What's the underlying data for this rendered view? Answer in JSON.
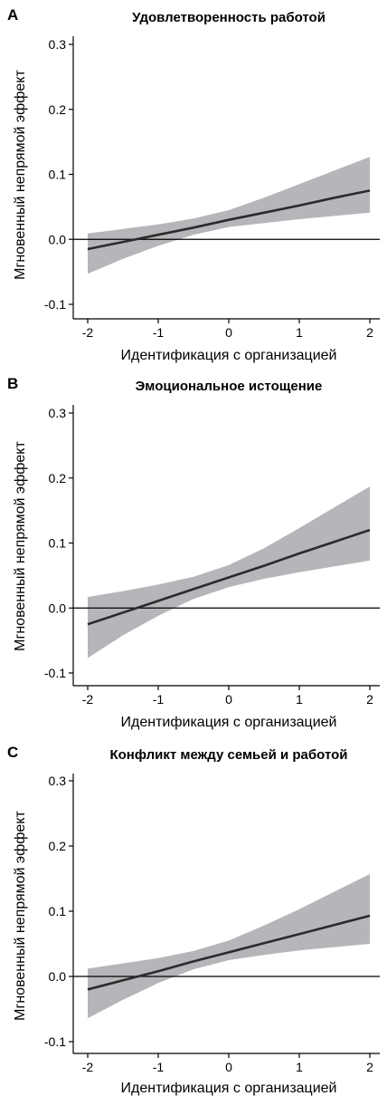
{
  "chart_data": [
    {
      "panel": "A",
      "type": "line",
      "title": "Удовлетворенность работой",
      "xlabel": "Идентификация с организацией",
      "ylabel": "Мгновенный непрямой эффект",
      "xlim": [
        -2,
        2
      ],
      "ylim": [
        -0.1,
        0.3
      ],
      "xticks": [
        "-2",
        "-1",
        "0",
        "1",
        "2"
      ],
      "yticks": [
        "-0.1",
        "0.0",
        "0.1",
        "0.2",
        "0.3"
      ],
      "reference_line_y": 0,
      "x": [
        -2,
        -1.5,
        -1,
        -0.5,
        0,
        0.5,
        1,
        1.5,
        2
      ],
      "estimate": [
        -0.015,
        -0.004,
        0.007,
        0.018,
        0.03,
        0.041,
        0.052,
        0.064,
        0.075
      ],
      "ci_upper": [
        0.009,
        0.016,
        0.023,
        0.032,
        0.045,
        0.064,
        0.085,
        0.106,
        0.127
      ],
      "ci_lower": [
        -0.053,
        -0.03,
        -0.01,
        0.007,
        0.019,
        0.025,
        0.031,
        0.036,
        0.041
      ],
      "line_color": "#2b2b2b",
      "band_color": "#b5b6b9"
    },
    {
      "panel": "B",
      "type": "line",
      "title": "Эмоциональное истощение",
      "xlabel": "Идентификация с организацией",
      "ylabel": "Мгновенный непрямой эффект",
      "xlim": [
        -2,
        2
      ],
      "ylim": [
        -0.1,
        0.3
      ],
      "xticks": [
        "-2",
        "-1",
        "0",
        "1",
        "2"
      ],
      "yticks": [
        "-0.1",
        "0.0",
        "0.1",
        "0.2",
        "0.3"
      ],
      "reference_line_y": 0,
      "x": [
        -2,
        -1.5,
        -1,
        -0.5,
        0,
        0.5,
        1,
        1.5,
        2
      ],
      "estimate": [
        -0.025,
        -0.007,
        0.011,
        0.029,
        0.047,
        0.065,
        0.084,
        0.102,
        0.12
      ],
      "ci_upper": [
        0.017,
        0.026,
        0.036,
        0.048,
        0.066,
        0.092,
        0.123,
        0.155,
        0.187
      ],
      "ci_lower": [
        -0.077,
        -0.042,
        -0.012,
        0.014,
        0.032,
        0.045,
        0.055,
        0.064,
        0.073
      ],
      "line_color": "#2b2b2b",
      "band_color": "#b5b6b9"
    },
    {
      "panel": "C",
      "type": "line",
      "title": "Конфликт между семьей и работой",
      "xlabel": "Идентификация с организацией",
      "ylabel": "Мгновенный непрямой эффект",
      "xlim": [
        -2,
        2
      ],
      "ylim": [
        -0.1,
        0.3
      ],
      "xticks": [
        "-2",
        "-1",
        "0",
        "1",
        "2"
      ],
      "yticks": [
        "-0.1",
        "0.0",
        "0.1",
        "0.2",
        "0.3"
      ],
      "reference_line_y": 0,
      "x": [
        -2,
        -1.5,
        -1,
        -0.5,
        0,
        0.5,
        1,
        1.5,
        2
      ],
      "estimate": [
        -0.02,
        -0.006,
        0.008,
        0.023,
        0.037,
        0.051,
        0.065,
        0.079,
        0.093
      ],
      "ci_upper": [
        0.012,
        0.02,
        0.028,
        0.039,
        0.055,
        0.078,
        0.103,
        0.13,
        0.157
      ],
      "ci_lower": [
        -0.064,
        -0.036,
        -0.01,
        0.011,
        0.025,
        0.033,
        0.04,
        0.045,
        0.05
      ],
      "line_color": "#2b2b2b",
      "band_color": "#b5b6b9"
    }
  ]
}
